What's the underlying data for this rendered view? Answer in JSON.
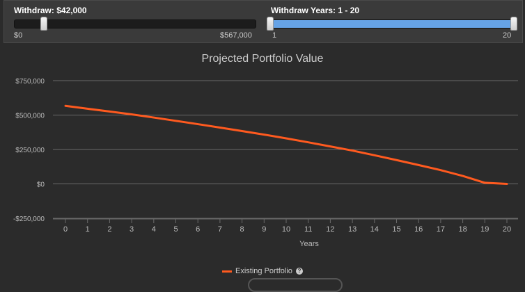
{
  "withdraw": {
    "label": "Withdraw: $42,000",
    "min_label": "$0",
    "max_label": "$567,000",
    "value": 42000,
    "min": 0,
    "max": 567000
  },
  "years": {
    "label": "Withdraw Years:  1 - 20",
    "min_label": "1",
    "max_label": "20",
    "range": [
      1,
      20
    ]
  },
  "chart_data": {
    "type": "line",
    "title": "Projected Portfolio Value",
    "xlabel": "Years",
    "ylabel": "",
    "x": [
      0,
      1,
      2,
      3,
      4,
      5,
      6,
      7,
      8,
      9,
      10,
      11,
      12,
      13,
      14,
      15,
      16,
      17,
      18,
      19,
      20
    ],
    "ylim": [
      -250000,
      750000
    ],
    "yticks": [
      -250000,
      0,
      250000,
      500000,
      750000
    ],
    "ytick_labels": [
      "-$250,000",
      "$0",
      "$250,000",
      "$500,000",
      "$750,000"
    ],
    "grid": true,
    "series": [
      {
        "name": "Existing Portfolio",
        "color": "#ff5a1f",
        "values": [
          567000,
          546000,
          526000,
          505000,
          482000,
          458000,
          434000,
          409000,
          384000,
          358000,
          331000,
          302000,
          272000,
          242000,
          208000,
          173000,
          137000,
          100000,
          58000,
          8000,
          0
        ]
      }
    ],
    "legend_position": "bottom"
  },
  "legend_label": "Existing Portfolio",
  "help_glyph": "?"
}
